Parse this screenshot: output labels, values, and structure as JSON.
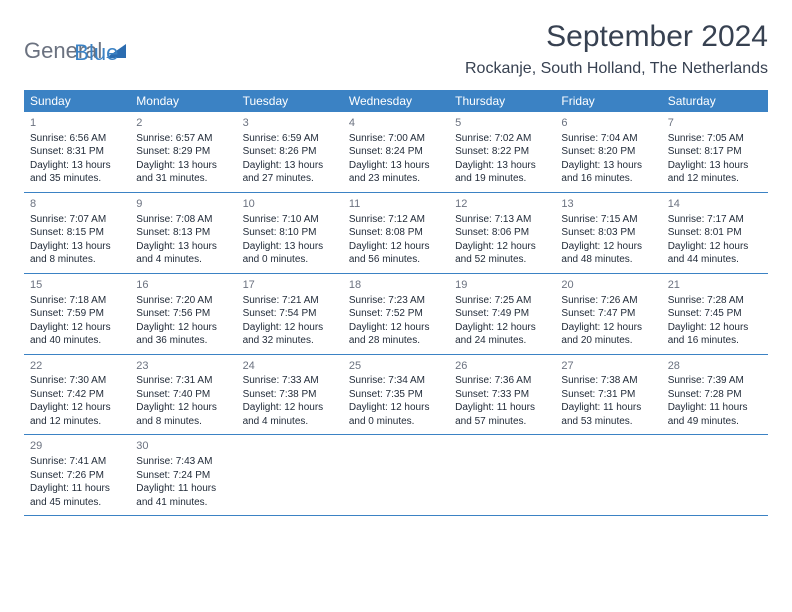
{
  "logo": {
    "part1": "General",
    "part2": "Blue"
  },
  "header": {
    "month_title": "September 2024",
    "location": "Rockanje, South Holland, The Netherlands"
  },
  "colors": {
    "header_bg": "#3b82c4",
    "header_text": "#ffffff",
    "body_bg": "#ffffff",
    "text": "#1f2937",
    "day_num": "#6b7280",
    "border": "#3b82c4"
  },
  "weekdays": [
    "Sunday",
    "Monday",
    "Tuesday",
    "Wednesday",
    "Thursday",
    "Friday",
    "Saturday"
  ],
  "weeks": [
    [
      {
        "n": "1",
        "sr": "6:56 AM",
        "ss": "8:31 PM",
        "dl": "13 hours and 35 minutes."
      },
      {
        "n": "2",
        "sr": "6:57 AM",
        "ss": "8:29 PM",
        "dl": "13 hours and 31 minutes."
      },
      {
        "n": "3",
        "sr": "6:59 AM",
        "ss": "8:26 PM",
        "dl": "13 hours and 27 minutes."
      },
      {
        "n": "4",
        "sr": "7:00 AM",
        "ss": "8:24 PM",
        "dl": "13 hours and 23 minutes."
      },
      {
        "n": "5",
        "sr": "7:02 AM",
        "ss": "8:22 PM",
        "dl": "13 hours and 19 minutes."
      },
      {
        "n": "6",
        "sr": "7:04 AM",
        "ss": "8:20 PM",
        "dl": "13 hours and 16 minutes."
      },
      {
        "n": "7",
        "sr": "7:05 AM",
        "ss": "8:17 PM",
        "dl": "13 hours and 12 minutes."
      }
    ],
    [
      {
        "n": "8",
        "sr": "7:07 AM",
        "ss": "8:15 PM",
        "dl": "13 hours and 8 minutes."
      },
      {
        "n": "9",
        "sr": "7:08 AM",
        "ss": "8:13 PM",
        "dl": "13 hours and 4 minutes."
      },
      {
        "n": "10",
        "sr": "7:10 AM",
        "ss": "8:10 PM",
        "dl": "13 hours and 0 minutes."
      },
      {
        "n": "11",
        "sr": "7:12 AM",
        "ss": "8:08 PM",
        "dl": "12 hours and 56 minutes."
      },
      {
        "n": "12",
        "sr": "7:13 AM",
        "ss": "8:06 PM",
        "dl": "12 hours and 52 minutes."
      },
      {
        "n": "13",
        "sr": "7:15 AM",
        "ss": "8:03 PM",
        "dl": "12 hours and 48 minutes."
      },
      {
        "n": "14",
        "sr": "7:17 AM",
        "ss": "8:01 PM",
        "dl": "12 hours and 44 minutes."
      }
    ],
    [
      {
        "n": "15",
        "sr": "7:18 AM",
        "ss": "7:59 PM",
        "dl": "12 hours and 40 minutes."
      },
      {
        "n": "16",
        "sr": "7:20 AM",
        "ss": "7:56 PM",
        "dl": "12 hours and 36 minutes."
      },
      {
        "n": "17",
        "sr": "7:21 AM",
        "ss": "7:54 PM",
        "dl": "12 hours and 32 minutes."
      },
      {
        "n": "18",
        "sr": "7:23 AM",
        "ss": "7:52 PM",
        "dl": "12 hours and 28 minutes."
      },
      {
        "n": "19",
        "sr": "7:25 AM",
        "ss": "7:49 PM",
        "dl": "12 hours and 24 minutes."
      },
      {
        "n": "20",
        "sr": "7:26 AM",
        "ss": "7:47 PM",
        "dl": "12 hours and 20 minutes."
      },
      {
        "n": "21",
        "sr": "7:28 AM",
        "ss": "7:45 PM",
        "dl": "12 hours and 16 minutes."
      }
    ],
    [
      {
        "n": "22",
        "sr": "7:30 AM",
        "ss": "7:42 PM",
        "dl": "12 hours and 12 minutes."
      },
      {
        "n": "23",
        "sr": "7:31 AM",
        "ss": "7:40 PM",
        "dl": "12 hours and 8 minutes."
      },
      {
        "n": "24",
        "sr": "7:33 AM",
        "ss": "7:38 PM",
        "dl": "12 hours and 4 minutes."
      },
      {
        "n": "25",
        "sr": "7:34 AM",
        "ss": "7:35 PM",
        "dl": "12 hours and 0 minutes."
      },
      {
        "n": "26",
        "sr": "7:36 AM",
        "ss": "7:33 PM",
        "dl": "11 hours and 57 minutes."
      },
      {
        "n": "27",
        "sr": "7:38 AM",
        "ss": "7:31 PM",
        "dl": "11 hours and 53 minutes."
      },
      {
        "n": "28",
        "sr": "7:39 AM",
        "ss": "7:28 PM",
        "dl": "11 hours and 49 minutes."
      }
    ],
    [
      {
        "n": "29",
        "sr": "7:41 AM",
        "ss": "7:26 PM",
        "dl": "11 hours and 45 minutes."
      },
      {
        "n": "30",
        "sr": "7:43 AM",
        "ss": "7:24 PM",
        "dl": "11 hours and 41 minutes."
      },
      null,
      null,
      null,
      null,
      null
    ]
  ],
  "labels": {
    "sunrise": "Sunrise:",
    "sunset": "Sunset:",
    "daylight": "Daylight:"
  }
}
